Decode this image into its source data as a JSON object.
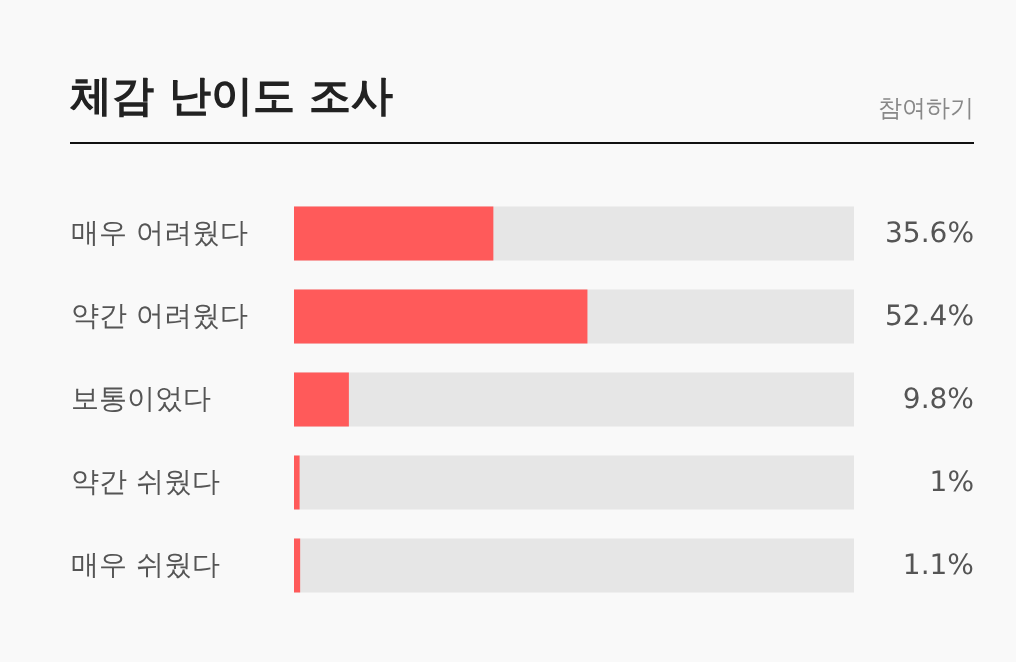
{
  "chart_data": {
    "type": "bar",
    "orientation": "horizontal",
    "title": "체감 난이도 조사",
    "annotations": [
      "참여하기"
    ],
    "categories": [
      "매우 어려웠다",
      "약간 어려웠다",
      "보통이었다",
      "약간 쉬웠다",
      "매우 쉬웠다"
    ],
    "values": [
      35.6,
      52.4,
      9.8,
      1,
      1.1
    ],
    "value_labels": [
      "35.6%",
      "52.4%",
      "9.8%",
      "1%",
      "1.1%"
    ],
    "color": "#ff5a5a",
    "xlim": [
      0,
      100
    ],
    "tick_labels": "y"
  }
}
